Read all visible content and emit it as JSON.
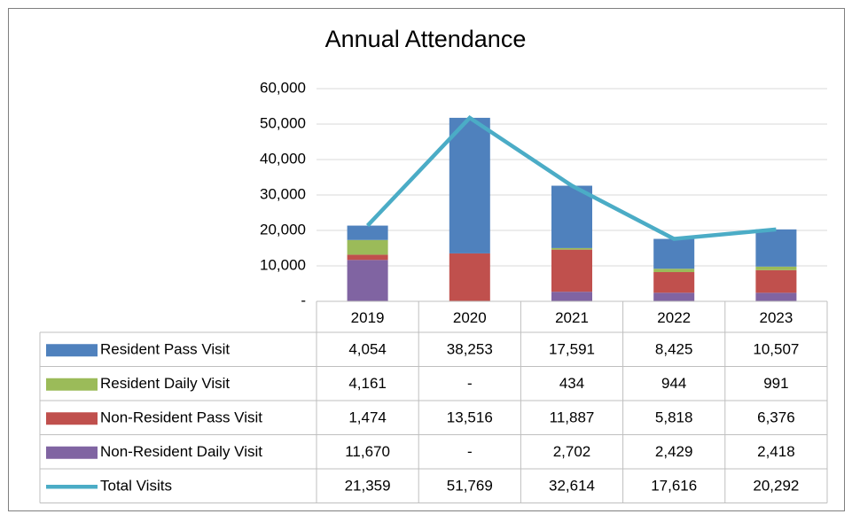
{
  "chart_data": {
    "type": "bar",
    "title": "Annual Attendance",
    "categories": [
      "2019",
      "2020",
      "2021",
      "2022",
      "2023"
    ],
    "series": [
      {
        "name": "Resident Pass Visit",
        "color": "#4f81bd",
        "values": [
          4054,
          38253,
          17591,
          8425,
          10507
        ],
        "value_labels": [
          "4,054",
          "38,253",
          "17,591",
          "8,425",
          "10,507"
        ]
      },
      {
        "name": "Resident Daily Visit",
        "color": "#9bbb59",
        "values": [
          4161,
          0,
          434,
          944,
          991
        ],
        "value_labels": [
          "4,161",
          "-",
          "434",
          "944",
          "991"
        ]
      },
      {
        "name": "Non-Resident Pass Visit",
        "color": "#c0504d",
        "values": [
          1474,
          13516,
          11887,
          5818,
          6376
        ],
        "value_labels": [
          "1,474",
          "13,516",
          "11,887",
          "5,818",
          "6,376"
        ]
      },
      {
        "name": "Non-Resident Daily Visit",
        "color": "#8064a2",
        "values": [
          11670,
          0,
          2702,
          2429,
          2418
        ],
        "value_labels": [
          "11,670",
          "-",
          "2,702",
          "2,429",
          "2,418"
        ]
      },
      {
        "name": "Total Visits",
        "type": "line",
        "color": "#4bacc6",
        "values": [
          21359,
          51769,
          32614,
          17616,
          20292
        ],
        "value_labels": [
          "21,359",
          "51,769",
          "32,614",
          "17,616",
          "20,292"
        ]
      }
    ],
    "stacked": true,
    "ylim": [
      0,
      60000
    ],
    "yticks": [
      {
        "value": 0,
        "label": "-"
      },
      {
        "value": 10000,
        "label": "10,000"
      },
      {
        "value": 20000,
        "label": "20,000"
      },
      {
        "value": 30000,
        "label": "30,000"
      },
      {
        "value": 40000,
        "label": "40,000"
      },
      {
        "value": 50000,
        "label": "50,000"
      },
      {
        "value": 60000,
        "label": "60,000"
      }
    ],
    "grid": true,
    "data_table": true
  }
}
